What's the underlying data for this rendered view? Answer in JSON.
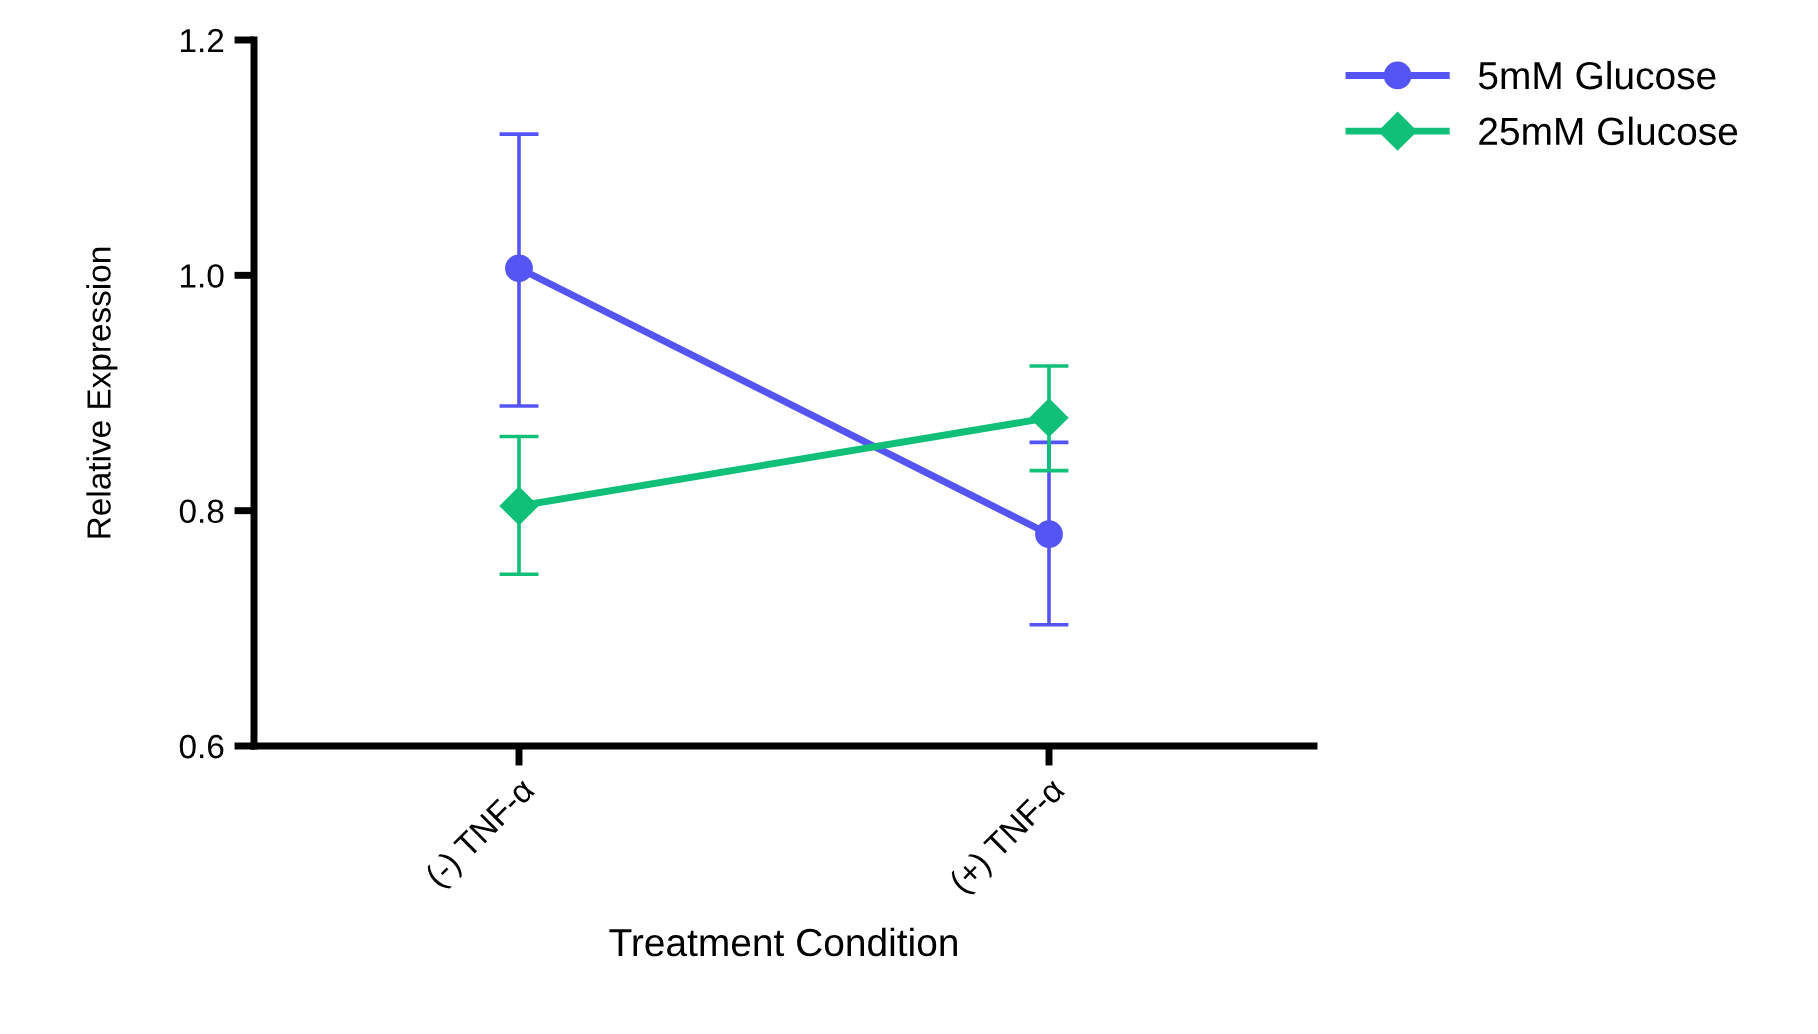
{
  "chart_data": {
    "type": "line",
    "xlabel": "Treatment Condition",
    "ylabel": "Relative Expression",
    "categories": [
      "(-) TNF-α",
      "(+) TNF-α"
    ],
    "series": [
      {
        "name": "5mM Glucose",
        "color": "#5555f5",
        "marker": "circle",
        "values": [
          1.006,
          0.78
        ],
        "errors": [
          [
            0.889,
            1.12
          ],
          [
            0.703,
            0.858
          ]
        ]
      },
      {
        "name": "25mM Glucose",
        "color": "#10bf78",
        "marker": "diamond",
        "values": [
          0.804,
          0.879
        ],
        "errors": [
          [
            0.746,
            0.863
          ],
          [
            0.834,
            0.923
          ]
        ]
      }
    ],
    "ylim": [
      0.6,
      1.2
    ],
    "yticks": [
      0.6,
      0.8,
      {
        "value": 1.0,
        "label": "1.0"
      },
      1.2
    ],
    "grid": false,
    "legend": "top right"
  }
}
